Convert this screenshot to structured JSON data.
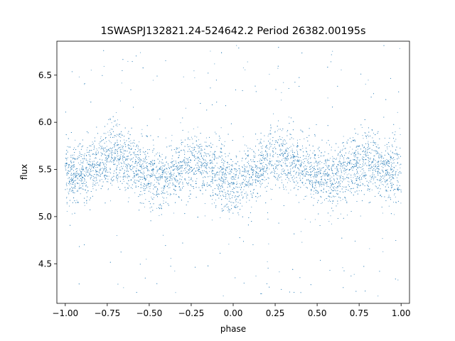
{
  "chart_data": {
    "type": "scatter",
    "title": "1SWASPJ132821.24-524642.2 Period 26382.00195s",
    "xlabel": "phase",
    "ylabel": "flux",
    "xlim": [
      -1.05,
      1.05
    ],
    "ylim": [
      4.08,
      6.86
    ],
    "x_ticks": [
      -1.0,
      -0.75,
      -0.5,
      -0.25,
      0.0,
      0.25,
      0.5,
      0.75,
      1.0
    ],
    "x_tick_labels": [
      "−1.00",
      "−0.75",
      "−0.50",
      "−0.25",
      "0.00",
      "0.25",
      "0.50",
      "0.75",
      "1.00"
    ],
    "y_ticks": [
      4.5,
      5.0,
      5.5,
      6.0,
      6.5
    ],
    "y_tick_labels": [
      "4.5",
      "5.0",
      "5.5",
      "6.0",
      "6.5"
    ],
    "grid": false,
    "marker_color": "#1f77b4",
    "series": [
      {
        "x": [
          -1.0,
          -0.9,
          -0.8,
          -0.7,
          -0.6,
          -0.5,
          -0.4,
          -0.3,
          -0.2,
          -0.1,
          0.0,
          0.1,
          0.2,
          0.3,
          0.4,
          0.5,
          0.6,
          0.7,
          0.8,
          0.9,
          1.0
        ],
        "values": [
          5.42,
          5.46,
          5.58,
          5.66,
          5.56,
          5.42,
          5.4,
          5.52,
          5.58,
          5.48,
          5.32,
          5.42,
          5.58,
          5.66,
          5.56,
          5.42,
          5.4,
          5.52,
          5.58,
          5.48,
          5.42
        ],
        "scatter_sd": 0.16,
        "range": [
          4.15,
          6.82
        ]
      }
    ]
  }
}
